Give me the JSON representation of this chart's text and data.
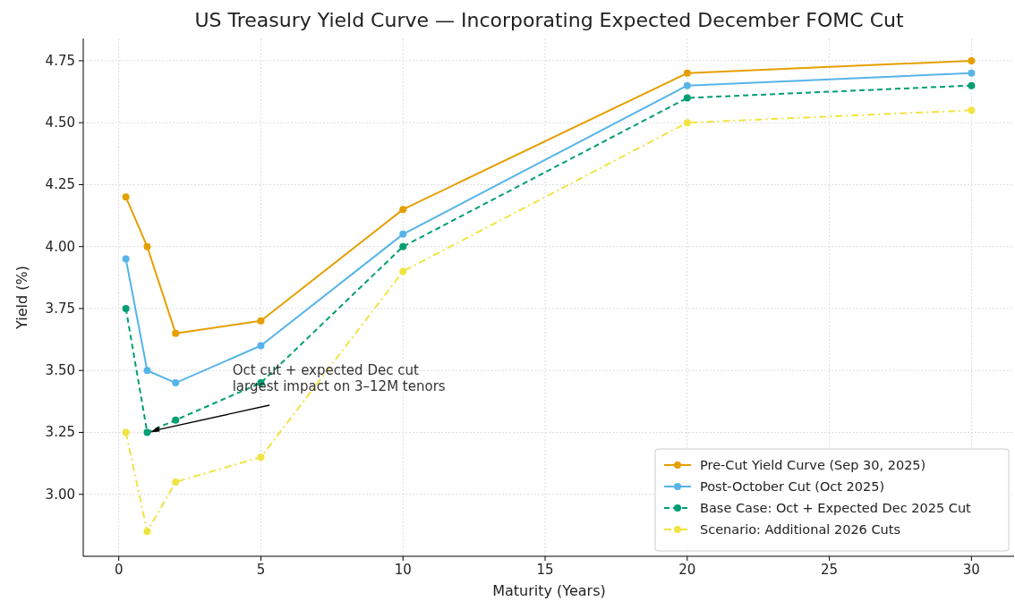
{
  "chart_data": {
    "type": "line",
    "title": "US Treasury Yield Curve — Incorporating Expected December FOMC Cut",
    "xlabel": "Maturity (Years)",
    "ylabel": "Yield (%)",
    "x": [
      0.25,
      1,
      2,
      5,
      10,
      20,
      30
    ],
    "series": [
      {
        "name": "Pre-Cut Yield Curve (Sep 30, 2025)",
        "color": "#e69f00",
        "line_style": "solid",
        "values": [
          4.2,
          4.0,
          3.65,
          3.7,
          4.15,
          4.7,
          4.75
        ]
      },
      {
        "name": "Post-October Cut (Oct 2025)",
        "color": "#56b4e9",
        "line_style": "solid",
        "values": [
          3.95,
          3.5,
          3.45,
          3.6,
          4.05,
          4.65,
          4.7
        ]
      },
      {
        "name": "Base Case: Oct + Expected Dec 2025 Cut",
        "color": "#009e73",
        "line_style": "dashed",
        "values": [
          3.75,
          3.25,
          3.3,
          3.45,
          4.0,
          4.6,
          4.65
        ]
      },
      {
        "name": "Scenario: Additional 2026 Cuts",
        "color": "#f0e442",
        "line_style": "dashdot",
        "values": [
          3.25,
          2.85,
          3.05,
          3.15,
          3.9,
          4.5,
          4.55
        ]
      }
    ],
    "xlim": [
      -1.25,
      31.5
    ],
    "xticks": [
      0,
      5,
      10,
      15,
      20,
      25,
      30
    ],
    "ylim": [
      2.75,
      4.84
    ],
    "yticks": [
      {
        "value": 3,
        "label": "3.00"
      },
      {
        "value": 3.25,
        "label": "3.25"
      },
      {
        "value": 3.5,
        "label": "3.50"
      },
      {
        "value": 3.75,
        "label": "3.75"
      },
      {
        "value": 4,
        "label": "4.00"
      },
      {
        "value": 4.25,
        "label": "4.25"
      },
      {
        "value": 4.5,
        "label": "4.50"
      },
      {
        "value": 4.75,
        "label": "4.75"
      }
    ],
    "grid": true,
    "legend": "bottom right",
    "marker": "circle",
    "annotations": [
      {
        "text": "Oct cut + expected Dec cut\nlargest impact on 3–12M tenors",
        "x": 1,
        "y": 3.25
      }
    ]
  }
}
